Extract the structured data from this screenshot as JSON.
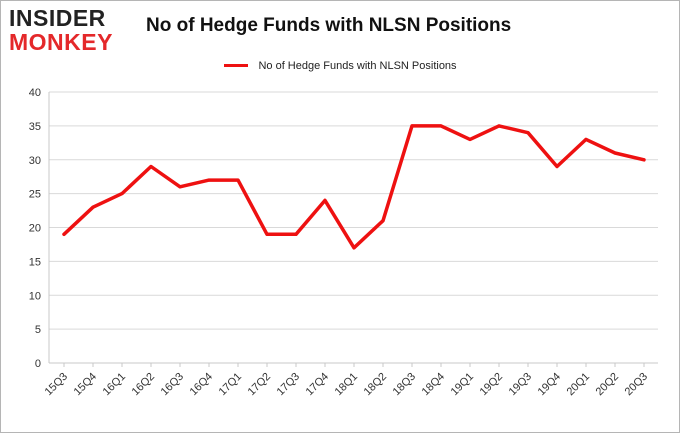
{
  "logo": {
    "line1": "INSIDER",
    "line2": "MONKEY"
  },
  "chart_data": {
    "type": "line",
    "title": "No of Hedge Funds with NLSN Positions",
    "xlabel": "",
    "ylabel": "",
    "categories": [
      "15Q3",
      "15Q4",
      "16Q1",
      "16Q2",
      "16Q3",
      "16Q4",
      "17Q1",
      "17Q2",
      "17Q3",
      "17Q4",
      "18Q1",
      "18Q2",
      "18Q3",
      "18Q4",
      "19Q1",
      "19Q2",
      "19Q3",
      "19Q4",
      "20Q1",
      "20Q2",
      "20Q3"
    ],
    "series": [
      {
        "name": "No of Hedge Funds with NLSN Positions",
        "values": [
          19,
          23,
          25,
          29,
          26,
          27,
          27,
          19,
          19,
          24,
          17,
          21,
          35,
          35,
          33,
          35,
          34,
          29,
          33,
          31,
          30
        ],
        "color": "#ee1111"
      }
    ],
    "ylim": [
      0,
      40
    ],
    "yticks": [
      0,
      5,
      10,
      15,
      20,
      25,
      30,
      35,
      40
    ],
    "grid": true,
    "legend": "top"
  }
}
